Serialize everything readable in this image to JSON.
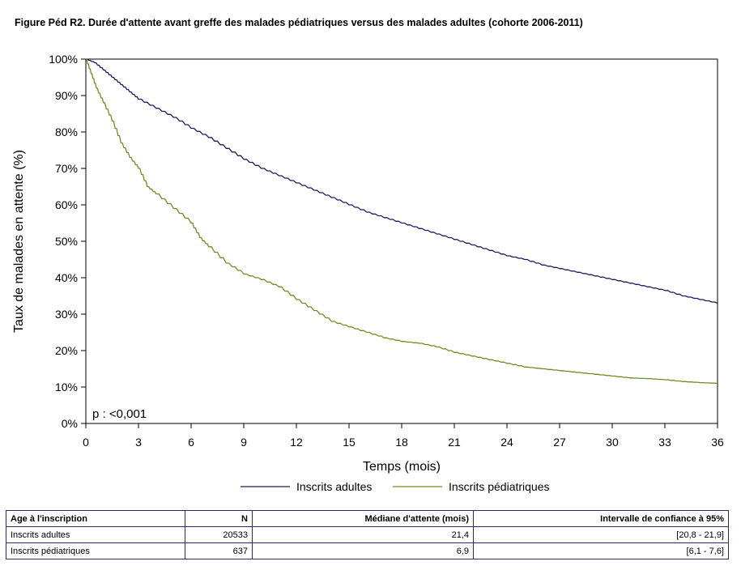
{
  "figure_title": "Figure Péd R2. Durée d'attente avant greffe des malades pédiatriques versus des malades adultes (cohorte 2006-2011)",
  "chart_data": {
    "type": "line",
    "title": "",
    "xlabel": "Temps (mois)",
    "ylabel": "Taux de malades en attente (%)",
    "xlim": [
      0,
      36
    ],
    "ylim": [
      0,
      100
    ],
    "x_ticks": [
      "0",
      "3",
      "6",
      "9",
      "12",
      "15",
      "18",
      "21",
      "24",
      "27",
      "30",
      "33",
      "36"
    ],
    "y_ticks": [
      "0%",
      "10%",
      "20%",
      "30%",
      "40%",
      "50%",
      "60%",
      "70%",
      "80%",
      "90%",
      "100%"
    ],
    "grid": false,
    "legend_position": "bottom",
    "annotation": "p : <0,001",
    "series": [
      {
        "name": "Inscrits adultes",
        "color": "#1a1a5e",
        "points": [
          [
            0,
            100
          ],
          [
            0.5,
            99
          ],
          [
            1,
            97
          ],
          [
            1.5,
            95
          ],
          [
            2,
            93
          ],
          [
            2.5,
            91
          ],
          [
            3,
            89
          ],
          [
            4,
            86.5
          ],
          [
            5,
            84
          ],
          [
            6,
            81
          ],
          [
            7,
            78.5
          ],
          [
            8,
            75.5
          ],
          [
            9,
            72.5
          ],
          [
            10,
            70
          ],
          [
            11,
            68
          ],
          [
            12,
            66
          ],
          [
            13,
            64
          ],
          [
            14,
            62
          ],
          [
            15,
            60
          ],
          [
            16,
            58
          ],
          [
            17,
            56.5
          ],
          [
            18,
            55
          ],
          [
            19,
            53.5
          ],
          [
            20,
            52
          ],
          [
            21,
            50.5
          ],
          [
            22,
            49
          ],
          [
            23,
            47.5
          ],
          [
            24,
            46
          ],
          [
            25,
            45
          ],
          [
            26,
            43.5
          ],
          [
            27,
            42.5
          ],
          [
            28,
            41.5
          ],
          [
            29,
            40.5
          ],
          [
            30,
            39.5
          ],
          [
            31,
            38.5
          ],
          [
            32,
            37.5
          ],
          [
            33,
            36.5
          ],
          [
            34,
            35
          ],
          [
            35,
            34
          ],
          [
            36,
            33
          ]
        ]
      },
      {
        "name": "Inscrits pédiatriques",
        "color": "#6b8e23",
        "points": [
          [
            0,
            100
          ],
          [
            0.3,
            96
          ],
          [
            0.6,
            92
          ],
          [
            1,
            88
          ],
          [
            1.5,
            83
          ],
          [
            2,
            77
          ],
          [
            2.5,
            73
          ],
          [
            3,
            70
          ],
          [
            3.5,
            65
          ],
          [
            4,
            63
          ],
          [
            5,
            59
          ],
          [
            6,
            55
          ],
          [
            6.5,
            51
          ],
          [
            7,
            48.5
          ],
          [
            8,
            44
          ],
          [
            9,
            41
          ],
          [
            10,
            39.5
          ],
          [
            11,
            37.5
          ],
          [
            12,
            34
          ],
          [
            13,
            31
          ],
          [
            14,
            28
          ],
          [
            15,
            26.5
          ],
          [
            16,
            25
          ],
          [
            17,
            23.5
          ],
          [
            18,
            22.5
          ],
          [
            19,
            22
          ],
          [
            20,
            21
          ],
          [
            21,
            19.5
          ],
          [
            22,
            18.5
          ],
          [
            23,
            17.5
          ],
          [
            24,
            16.5
          ],
          [
            25,
            15.5
          ],
          [
            26,
            15
          ],
          [
            27,
            14.5
          ],
          [
            28,
            14
          ],
          [
            29,
            13.5
          ],
          [
            30,
            13
          ],
          [
            31,
            12.5
          ],
          [
            32,
            12.3
          ],
          [
            33,
            12
          ],
          [
            34,
            11.5
          ],
          [
            35,
            11.2
          ],
          [
            36,
            11
          ]
        ]
      }
    ]
  },
  "table": {
    "headers": [
      "Age à l'inscription",
      "N",
      "Médiane d'attente (mois)",
      "Intervalle de confiance à 95%"
    ],
    "rows": [
      [
        "Inscrits adultes",
        "20533",
        "21,4",
        "[20,8 - 21,9]"
      ],
      [
        "Inscrits pédiatriques",
        "637",
        "6,9",
        "[6,1 - 7,6]"
      ]
    ]
  }
}
